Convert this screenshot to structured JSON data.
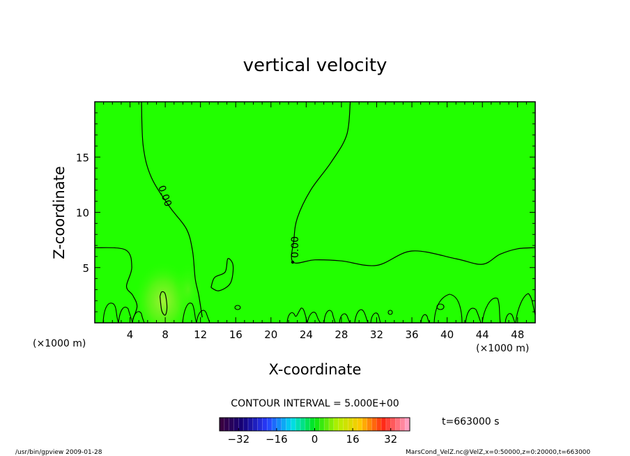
{
  "chart_data": {
    "type": "heatmap",
    "title": "vertical velocity",
    "xlabel": "X-coordinate",
    "ylabel": "Z-coordinate",
    "x_unit_left": "(×1000 m)",
    "x_unit_right": "(×1000 m)",
    "xlim": [
      0,
      50
    ],
    "ylim": [
      0,
      20
    ],
    "xticks": [
      4,
      8,
      12,
      16,
      20,
      24,
      28,
      32,
      36,
      40,
      44,
      48
    ],
    "yticks": [
      5,
      10,
      15
    ],
    "contour_interval_text": "CONTOUR INTERVAL = 5.000E+00",
    "contour_labels": [
      "0.00",
      "0.00"
    ],
    "time_text": "t=663000 s",
    "colorbar": {
      "range": [
        -40,
        40
      ],
      "ticks": [
        -32,
        -16,
        0,
        16,
        32
      ]
    },
    "background_value": 0,
    "features": [
      {
        "description_value": 0,
        "region": "near-zero field"
      },
      {
        "x": 7.7,
        "z": 1.8,
        "value": 6
      }
    ],
    "contours": [
      {
        "name": "zero-contour-left",
        "points": [
          [
            5.3,
            20
          ],
          [
            5.5,
            16
          ],
          [
            6.4,
            13.2
          ],
          [
            8.5,
            10.5
          ],
          [
            10.4,
            8.5
          ],
          [
            11.1,
            6.5
          ],
          [
            11.4,
            4
          ],
          [
            11.8,
            2.5
          ],
          [
            12.2,
            0.5
          ]
        ]
      },
      {
        "name": "zero-contour-right",
        "points": [
          [
            29,
            20
          ],
          [
            28.6,
            17
          ],
          [
            26.8,
            14.5
          ],
          [
            24.5,
            12
          ],
          [
            23,
            9.5
          ],
          [
            22.6,
            7.5
          ],
          [
            22.5,
            5.5
          ],
          [
            25,
            5.7
          ],
          [
            28,
            5.6
          ],
          [
            32,
            5.2
          ],
          [
            36,
            6.5
          ],
          [
            41,
            5.8
          ],
          [
            44,
            5.3
          ],
          [
            46,
            6.2
          ],
          [
            48,
            6.7
          ],
          [
            50,
            6.8
          ]
        ]
      },
      {
        "name": "zero-contour-lower-left",
        "points": [
          [
            0,
            6.8
          ],
          [
            3.5,
            6.6
          ],
          [
            4.2,
            5
          ],
          [
            3.6,
            3.3
          ],
          [
            4.3,
            2.5
          ],
          [
            4.8,
            1.5
          ],
          [
            4.3,
            0.3
          ]
        ]
      },
      {
        "name": "zero-contour-cell-7-8",
        "points": [
          [
            7.4,
            2.4
          ],
          [
            7.6,
            1.1
          ],
          [
            8.0,
            0.7
          ],
          [
            8.2,
            1.4
          ],
          [
            8.0,
            2.6
          ],
          [
            7.6,
            2.8
          ],
          [
            7.4,
            2.4
          ]
        ]
      },
      {
        "name": "zero-contour-cell-14-15",
        "points": [
          [
            13.2,
            3.2
          ],
          [
            13.6,
            4.1
          ],
          [
            14.8,
            4.6
          ],
          [
            15.1,
            5.8
          ],
          [
            15.7,
            5.2
          ],
          [
            15.4,
            3.6
          ],
          [
            14.1,
            2.9
          ],
          [
            13.2,
            3.2
          ]
        ]
      }
    ]
  },
  "footer": {
    "left": "/usr/bin/gpview   2009-01-28",
    "right": "MarsCond_VelZ.nc@VelZ,x=0:50000,z=0:20000,t=663000"
  }
}
